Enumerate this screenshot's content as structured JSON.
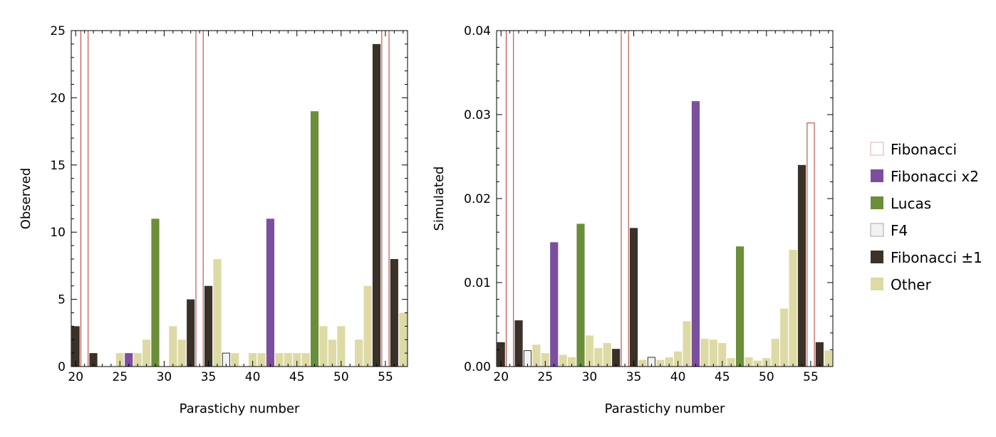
{
  "colors": {
    "Fibonacci": "#ffffff",
    "Fibonacci_stroke": "#b03a2e",
    "Fibonacci x2": "#7b4f9e",
    "Lucas": "#6b8e3a",
    "F4": "#f2f2f2",
    "F4_stroke": "#333333",
    "Fibonacci ±1": "#3a3128",
    "Other": "#dedaa6"
  },
  "legend": [
    {
      "key": "Fibonacci",
      "label": "Fibonacci"
    },
    {
      "key": "Fibonacci x2",
      "label": "Fibonacci x2"
    },
    {
      "key": "Lucas",
      "label": "Lucas"
    },
    {
      "key": "F4",
      "label": "F4"
    },
    {
      "key": "Fibonacci ±1",
      "label": "Fibonacci ±1"
    },
    {
      "key": "Other",
      "label": "Other"
    }
  ],
  "chart_data": [
    {
      "type": "bar",
      "xlabel": "Parastichy number",
      "ylabel": "Observed",
      "xlim": [
        19.5,
        57.5
      ],
      "ylim": [
        0,
        25
      ],
      "xticks": [
        20,
        25,
        30,
        35,
        40,
        45,
        50,
        55
      ],
      "yticks": [
        0,
        5,
        10,
        15,
        20,
        25
      ],
      "ytick_labels": [
        "0",
        "5",
        "10",
        "15",
        "20",
        "25"
      ],
      "grid": false,
      "bars": [
        {
          "x": 20,
          "y": 3,
          "cat": "Fibonacci ±1"
        },
        {
          "x": 21,
          "y": 25,
          "cat": "Fibonacci"
        },
        {
          "x": 22,
          "y": 1,
          "cat": "Fibonacci ±1"
        },
        {
          "x": 25,
          "y": 1,
          "cat": "Other"
        },
        {
          "x": 26,
          "y": 1,
          "cat": "Fibonacci x2"
        },
        {
          "x": 27,
          "y": 1,
          "cat": "Other"
        },
        {
          "x": 28,
          "y": 2,
          "cat": "Other"
        },
        {
          "x": 29,
          "y": 11,
          "cat": "Lucas"
        },
        {
          "x": 31,
          "y": 3,
          "cat": "Other"
        },
        {
          "x": 32,
          "y": 2,
          "cat": "Other"
        },
        {
          "x": 33,
          "y": 5,
          "cat": "Fibonacci ±1"
        },
        {
          "x": 34,
          "y": 25,
          "cat": "Fibonacci"
        },
        {
          "x": 35,
          "y": 6,
          "cat": "Fibonacci ±1"
        },
        {
          "x": 36,
          "y": 8,
          "cat": "Other"
        },
        {
          "x": 37,
          "y": 1,
          "cat": "F4"
        },
        {
          "x": 38,
          "y": 1,
          "cat": "Other"
        },
        {
          "x": 40,
          "y": 1,
          "cat": "Other"
        },
        {
          "x": 41,
          "y": 1,
          "cat": "Other"
        },
        {
          "x": 42,
          "y": 11,
          "cat": "Fibonacci x2"
        },
        {
          "x": 43,
          "y": 1,
          "cat": "Other"
        },
        {
          "x": 44,
          "y": 1,
          "cat": "Other"
        },
        {
          "x": 45,
          "y": 1,
          "cat": "Other"
        },
        {
          "x": 46,
          "y": 1,
          "cat": "Other"
        },
        {
          "x": 47,
          "y": 19,
          "cat": "Lucas"
        },
        {
          "x": 48,
          "y": 3,
          "cat": "Other"
        },
        {
          "x": 49,
          "y": 2,
          "cat": "Other"
        },
        {
          "x": 50,
          "y": 3,
          "cat": "Other"
        },
        {
          "x": 52,
          "y": 2,
          "cat": "Other"
        },
        {
          "x": 53,
          "y": 6,
          "cat": "Other"
        },
        {
          "x": 54,
          "y": 24,
          "cat": "Fibonacci ±1"
        },
        {
          "x": 55,
          "y": 25,
          "cat": "Fibonacci"
        },
        {
          "x": 56,
          "y": 8,
          "cat": "Fibonacci ±1"
        },
        {
          "x": 57,
          "y": 4,
          "cat": "Other"
        }
      ]
    },
    {
      "type": "bar",
      "xlabel": "Parastichy number",
      "ylabel": "Simulated",
      "xlim": [
        19.5,
        57.5
      ],
      "ylim": [
        0,
        0.04
      ],
      "xticks": [
        20,
        25,
        30,
        35,
        40,
        45,
        50,
        55
      ],
      "yticks": [
        0,
        0.01,
        0.02,
        0.03,
        0.04
      ],
      "ytick_labels": [
        "0.00",
        "0.01",
        "0.02",
        "0.03",
        "0.04"
      ],
      "grid": false,
      "bars": [
        {
          "x": 20,
          "y": 0.0029,
          "cat": "Fibonacci ±1"
        },
        {
          "x": 21,
          "y": 0.04,
          "cat": "Fibonacci"
        },
        {
          "x": 22,
          "y": 0.0055,
          "cat": "Fibonacci ±1"
        },
        {
          "x": 23,
          "y": 0.0019,
          "cat": "F4"
        },
        {
          "x": 24,
          "y": 0.0026,
          "cat": "Other"
        },
        {
          "x": 25,
          "y": 0.0016,
          "cat": "Other"
        },
        {
          "x": 26,
          "y": 0.0148,
          "cat": "Fibonacci x2"
        },
        {
          "x": 27,
          "y": 0.0014,
          "cat": "Other"
        },
        {
          "x": 28,
          "y": 0.0011,
          "cat": "Other"
        },
        {
          "x": 29,
          "y": 0.017,
          "cat": "Lucas"
        },
        {
          "x": 30,
          "y": 0.0037,
          "cat": "Other"
        },
        {
          "x": 31,
          "y": 0.0022,
          "cat": "Other"
        },
        {
          "x": 32,
          "y": 0.0028,
          "cat": "Other"
        },
        {
          "x": 33,
          "y": 0.0021,
          "cat": "Fibonacci ±1"
        },
        {
          "x": 34,
          "y": 0.04,
          "cat": "Fibonacci"
        },
        {
          "x": 35,
          "y": 0.0165,
          "cat": "Fibonacci ±1"
        },
        {
          "x": 36,
          "y": 0.0008,
          "cat": "Other"
        },
        {
          "x": 37,
          "y": 0.0011,
          "cat": "F4"
        },
        {
          "x": 38,
          "y": 0.0008,
          "cat": "Other"
        },
        {
          "x": 39,
          "y": 0.0011,
          "cat": "Other"
        },
        {
          "x": 40,
          "y": 0.0018,
          "cat": "Other"
        },
        {
          "x": 41,
          "y": 0.0054,
          "cat": "Other"
        },
        {
          "x": 42,
          "y": 0.0316,
          "cat": "Fibonacci x2"
        },
        {
          "x": 43,
          "y": 0.0033,
          "cat": "Other"
        },
        {
          "x": 44,
          "y": 0.0032,
          "cat": "Other"
        },
        {
          "x": 45,
          "y": 0.0028,
          "cat": "Other"
        },
        {
          "x": 46,
          "y": 0.001,
          "cat": "Other"
        },
        {
          "x": 47,
          "y": 0.0143,
          "cat": "Lucas"
        },
        {
          "x": 48,
          "y": 0.0011,
          "cat": "Other"
        },
        {
          "x": 49,
          "y": 0.0007,
          "cat": "Other"
        },
        {
          "x": 50,
          "y": 0.001,
          "cat": "Other"
        },
        {
          "x": 51,
          "y": 0.0033,
          "cat": "Other"
        },
        {
          "x": 52,
          "y": 0.0069,
          "cat": "Other"
        },
        {
          "x": 53,
          "y": 0.0139,
          "cat": "Other"
        },
        {
          "x": 54,
          "y": 0.024,
          "cat": "Fibonacci ±1"
        },
        {
          "x": 55,
          "y": 0.029,
          "cat": "Fibonacci"
        },
        {
          "x": 56,
          "y": 0.0029,
          "cat": "Fibonacci ±1"
        },
        {
          "x": 57,
          "y": 0.0019,
          "cat": "Other"
        }
      ]
    }
  ]
}
